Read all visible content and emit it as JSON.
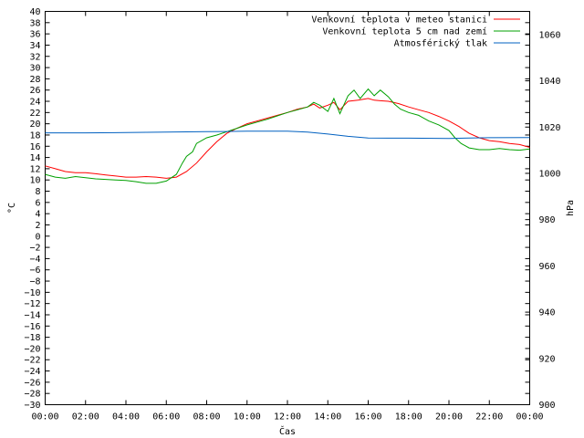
{
  "chart_data": {
    "type": "line",
    "xlabel": "Čas",
    "ylabel_left": "°C",
    "ylabel_right": "hPa",
    "x_ticks": [
      "00:00",
      "02:00",
      "04:00",
      "06:00",
      "08:00",
      "10:00",
      "12:00",
      "14:00",
      "16:00",
      "18:00",
      "20:00",
      "22:00",
      "00:00"
    ],
    "ylim_left": [
      -30,
      40
    ],
    "y_ticks_left": [
      -30,
      -28,
      -26,
      -24,
      -22,
      -20,
      -18,
      -16,
      -14,
      -12,
      -10,
      -8,
      -6,
      -4,
      -2,
      0,
      2,
      4,
      6,
      8,
      10,
      12,
      14,
      16,
      18,
      20,
      22,
      24,
      26,
      28,
      30,
      32,
      34,
      36,
      38,
      40
    ],
    "ylim_right": [
      900,
      1070
    ],
    "y_ticks_right": [
      900,
      920,
      940,
      960,
      980,
      1000,
      1020,
      1040,
      1060
    ],
    "grid": false,
    "legend_position": "top-right",
    "series": [
      {
        "name": "Venkovní teplota v meteo stanici",
        "axis": "left",
        "color": "#ff0000",
        "x_hours": [
          0,
          0.5,
          1,
          1.5,
          2,
          2.5,
          3,
          3.5,
          4,
          4.5,
          5,
          5.5,
          6,
          6.5,
          7,
          7.5,
          8,
          8.5,
          9,
          9.5,
          10,
          10.5,
          11,
          11.5,
          12,
          12.5,
          13,
          13.3,
          13.6,
          14,
          14.3,
          14.6,
          15,
          15.5,
          16,
          16.3,
          16.6,
          17,
          17.5,
          18,
          18.5,
          19,
          19.5,
          20,
          20.5,
          21,
          21.5,
          22,
          22.5,
          23,
          23.5,
          24
        ],
        "values": [
          12.5,
          12,
          11.5,
          11.3,
          11.3,
          11.1,
          10.9,
          10.7,
          10.5,
          10.5,
          10.6,
          10.5,
          10.3,
          10.5,
          11.5,
          13,
          15,
          16.8,
          18.3,
          19.2,
          20,
          20.5,
          21,
          21.5,
          22,
          22.6,
          23,
          23.5,
          22.8,
          23.3,
          23.8,
          22.5,
          24,
          24.2,
          24.5,
          24.2,
          24.1,
          24,
          23.6,
          23,
          22.5,
          22,
          21.3,
          20.5,
          19.5,
          18.3,
          17.5,
          17,
          16.8,
          16.5,
          16.3,
          15.8
        ]
      },
      {
        "name": "Venkovní teplota 5 cm nad zemí",
        "axis": "left",
        "color": "#00a000",
        "x_hours": [
          0,
          0.5,
          1,
          1.5,
          2,
          2.5,
          3,
          3.5,
          4,
          4.5,
          5,
          5.5,
          6,
          6.5,
          6.8,
          7,
          7.3,
          7.5,
          8,
          8.5,
          9,
          9.5,
          10,
          10.5,
          11,
          11.5,
          12,
          12.5,
          13,
          13.3,
          13.6,
          14,
          14.3,
          14.6,
          15,
          15.3,
          15.6,
          16,
          16.3,
          16.6,
          17,
          17.3,
          17.6,
          18,
          18.5,
          19,
          19.5,
          20,
          20.3,
          20.6,
          21,
          21.5,
          22,
          22.5,
          23,
          23.5,
          24
        ],
        "values": [
          11,
          10.5,
          10.3,
          10.6,
          10.4,
          10.2,
          10.1,
          10,
          9.9,
          9.7,
          9.4,
          9.4,
          9.8,
          11,
          13,
          14.2,
          15,
          16.5,
          17.5,
          18,
          18.6,
          19.2,
          19.8,
          20.3,
          20.8,
          21.4,
          22,
          22.5,
          23,
          23.8,
          23.3,
          22.2,
          24.5,
          21.8,
          25,
          26,
          24.5,
          26.2,
          25,
          26,
          24.8,
          23.5,
          22.6,
          22,
          21.5,
          20.5,
          19.8,
          18.8,
          17.5,
          16.5,
          15.7,
          15.4,
          15.4,
          15.6,
          15.4,
          15.3,
          15.5
        ]
      },
      {
        "name": "Atmosférický tlak",
        "axis": "right",
        "color": "#0060c0",
        "x_hours": [
          0,
          2,
          4,
          6,
          8,
          9,
          10,
          12,
          13,
          14,
          15,
          16,
          17,
          18,
          20,
          22,
          24
        ],
        "values": [
          1017.5,
          1017.5,
          1017.6,
          1017.8,
          1018,
          1018.1,
          1018.2,
          1018.2,
          1017.8,
          1017,
          1016,
          1015.3,
          1015.2,
          1015.2,
          1015.1,
          1015.4,
          1015.5
        ]
      }
    ]
  }
}
